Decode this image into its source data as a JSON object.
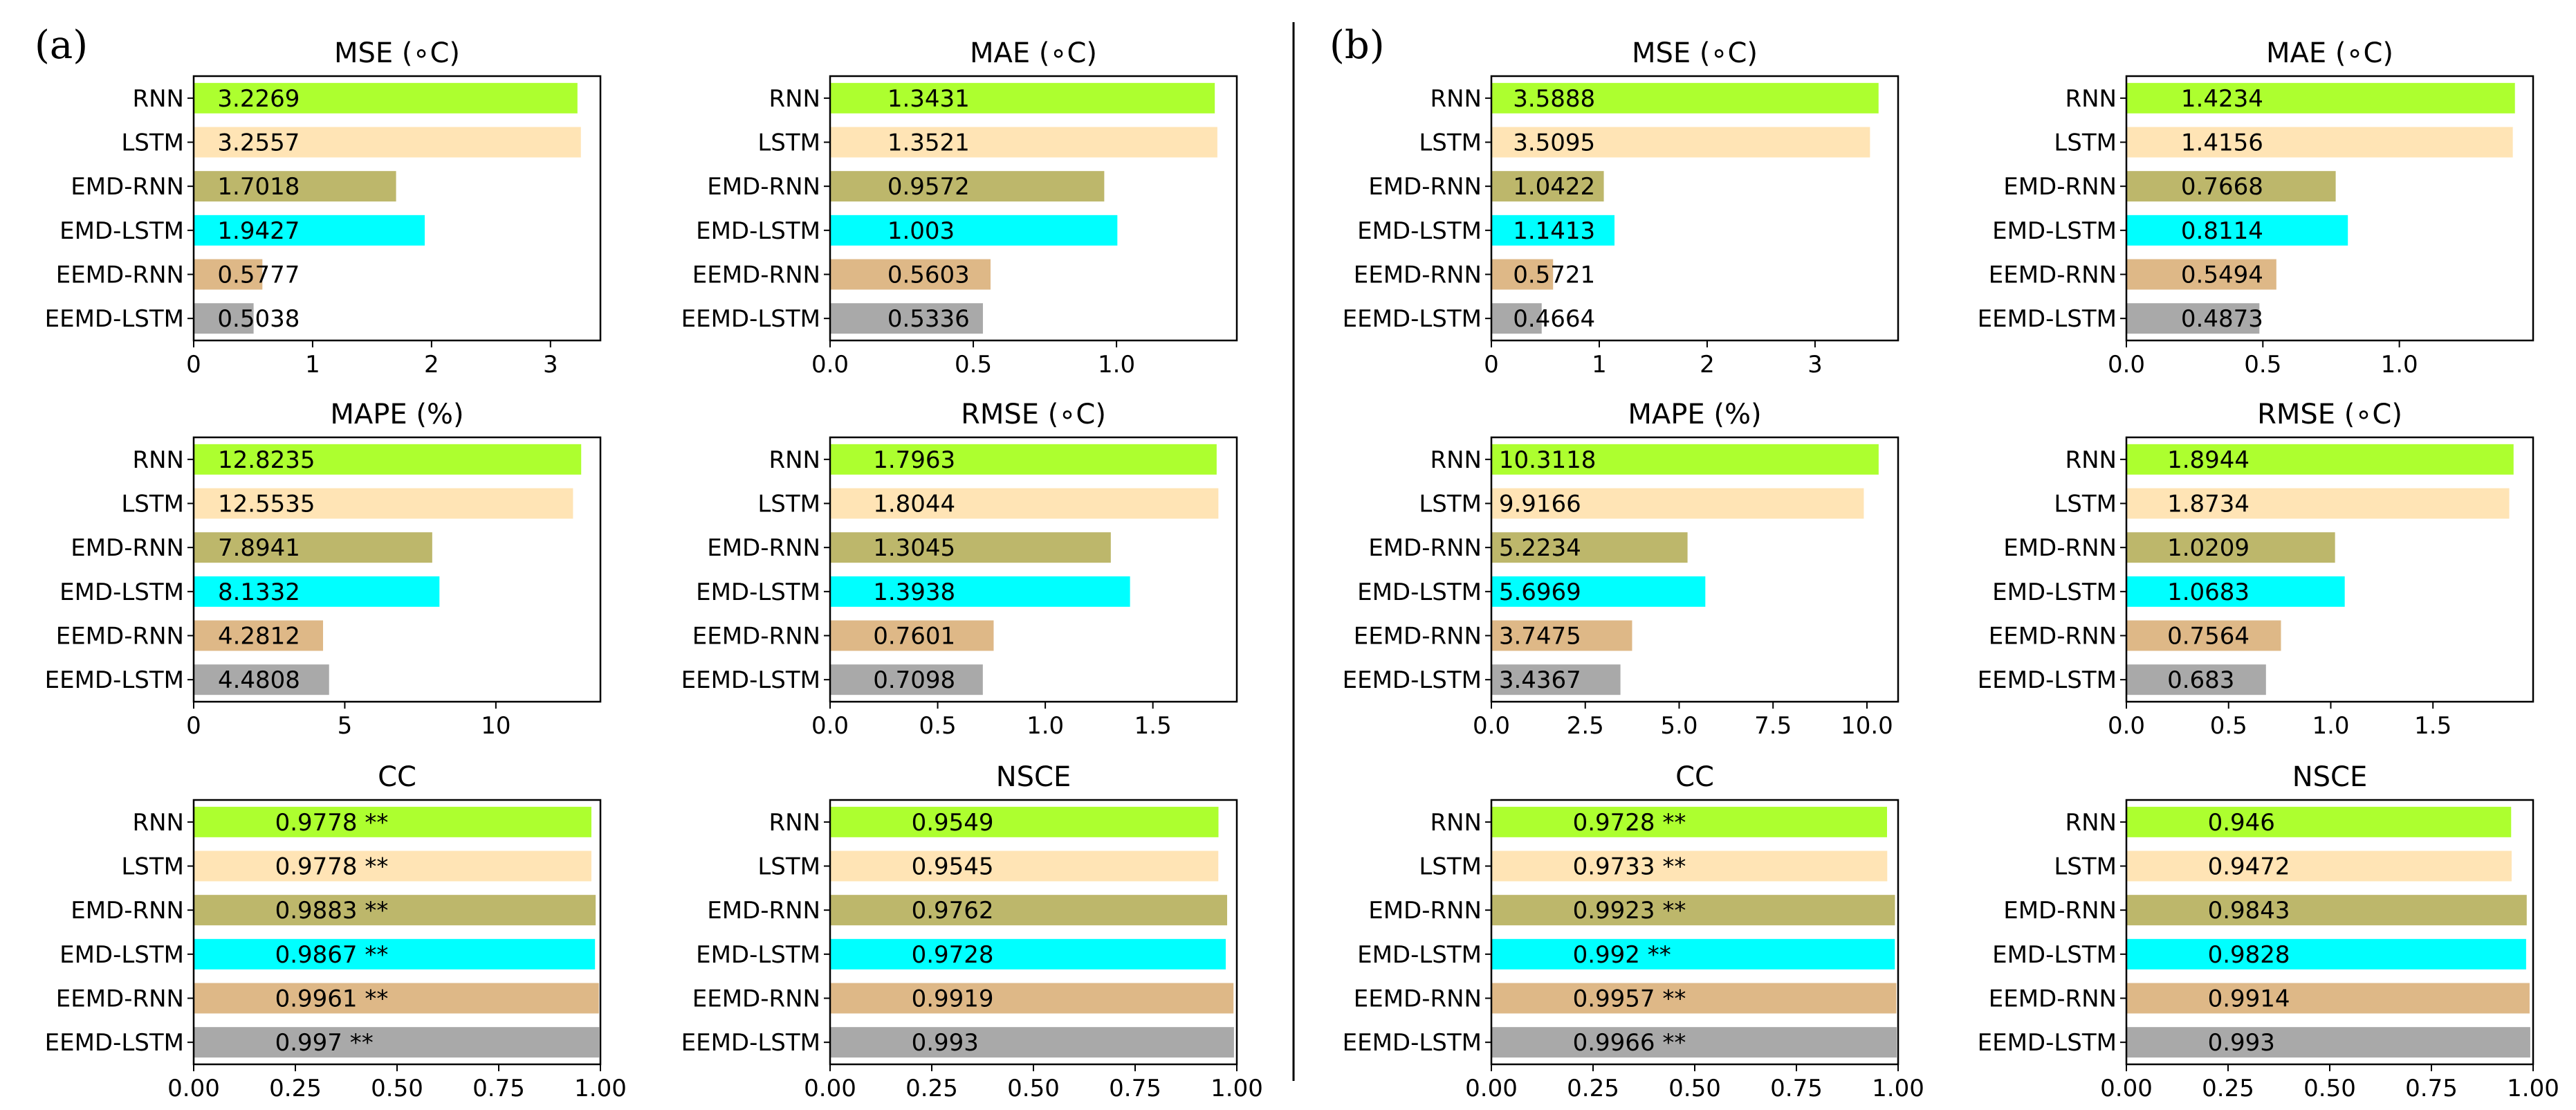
{
  "figure": {
    "panels": [
      {
        "label": "(a)"
      },
      {
        "label": "(b)"
      }
    ]
  },
  "colors": [
    "#adff2f",
    "#ffe4b5",
    "#bdb76b",
    "#00ffff",
    "#deb887",
    "#a9a9a9"
  ],
  "chart_data": [
    {
      "panel": "(a)",
      "type": "bar",
      "orientation": "horizontal",
      "title": "MSE (∘C)",
      "categories": [
        "RNN",
        "LSTM",
        "EMD-RNN",
        "EMD-LSTM",
        "EEMD-RNN",
        "EEMD-LSTM"
      ],
      "values": [
        3.2269,
        3.2557,
        1.7018,
        1.9427,
        0.5777,
        0.5038
      ],
      "labels": [
        "3.2269",
        "3.2557",
        "1.7018",
        "1.9427",
        "0.5777",
        "0.5038"
      ],
      "xlim": [
        0,
        3.42
      ],
      "xticks": [
        0,
        1,
        2,
        3
      ],
      "xtick_labels": [
        "0",
        "1",
        "2",
        "3"
      ],
      "label_x": 0.2
    },
    {
      "panel": "(a)",
      "type": "bar",
      "orientation": "horizontal",
      "title": "MAE (∘C)",
      "categories": [
        "RNN",
        "LSTM",
        "EMD-RNN",
        "EMD-LSTM",
        "EEMD-RNN",
        "EEMD-LSTM"
      ],
      "values": [
        1.3431,
        1.3521,
        0.9572,
        1.003,
        0.5603,
        0.5336
      ],
      "labels": [
        "1.3431",
        "1.3521",
        "0.9572",
        "1.003",
        "0.5603",
        "0.5336"
      ],
      "xlim": [
        0,
        1.42
      ],
      "xticks": [
        0,
        0.5,
        1.0
      ],
      "xtick_labels": [
        "0.0",
        "0.5",
        "1.0"
      ],
      "label_x": 0.2
    },
    {
      "panel": "(a)",
      "type": "bar",
      "orientation": "horizontal",
      "title": "MAPE (%)",
      "categories": [
        "RNN",
        "LSTM",
        "EMD-RNN",
        "EMD-LSTM",
        "EEMD-RNN",
        "EEMD-LSTM"
      ],
      "values": [
        12.8235,
        12.5535,
        7.8941,
        8.1332,
        4.2812,
        4.4808
      ],
      "labels": [
        "12.8235",
        "12.5535",
        "7.8941",
        "8.1332",
        "4.2812",
        "4.4808"
      ],
      "xlim": [
        0,
        13.46
      ],
      "xticks": [
        0,
        5,
        10
      ],
      "xtick_labels": [
        "0",
        "5",
        "10"
      ],
      "label_x": 0.8
    },
    {
      "panel": "(a)",
      "type": "bar",
      "orientation": "horizontal",
      "title": "RMSE (∘C)",
      "categories": [
        "RNN",
        "LSTM",
        "EMD-RNN",
        "EMD-LSTM",
        "EEMD-RNN",
        "EEMD-LSTM"
      ],
      "values": [
        1.7963,
        1.8044,
        1.3045,
        1.3938,
        0.7601,
        0.7098
      ],
      "labels": [
        "1.7963",
        "1.8044",
        "1.3045",
        "1.3938",
        "0.7601",
        "0.7098"
      ],
      "xlim": [
        0,
        1.89
      ],
      "xticks": [
        0,
        0.5,
        1.0,
        1.5
      ],
      "xtick_labels": [
        "0.0",
        "0.5",
        "1.0",
        "1.5"
      ],
      "label_x": 0.2
    },
    {
      "panel": "(a)",
      "type": "bar",
      "orientation": "horizontal",
      "title": "CC",
      "categories": [
        "RNN",
        "LSTM",
        "EMD-RNN",
        "EMD-LSTM",
        "EEMD-RNN",
        "EEMD-LSTM"
      ],
      "values": [
        0.9778,
        0.9778,
        0.9883,
        0.9867,
        0.9961,
        0.997
      ],
      "labels": [
        "0.9778 **",
        "0.9778 **",
        "0.9883 **",
        "0.9867 **",
        "0.9961 **",
        "0.997 **"
      ],
      "xlim": [
        0,
        1.0
      ],
      "xticks": [
        0,
        0.25,
        0.5,
        0.75,
        1.0
      ],
      "xtick_labels": [
        "0.00",
        "0.25",
        "0.50",
        "0.75",
        "1.00"
      ],
      "label_x": 0.2
    },
    {
      "panel": "(a)",
      "type": "bar",
      "orientation": "horizontal",
      "title": "NSCE",
      "categories": [
        "RNN",
        "LSTM",
        "EMD-RNN",
        "EMD-LSTM",
        "EEMD-RNN",
        "EEMD-LSTM"
      ],
      "values": [
        0.9549,
        0.9545,
        0.9762,
        0.9728,
        0.9919,
        0.993
      ],
      "labels": [
        "0.9549",
        "0.9545",
        "0.9762",
        "0.9728",
        "0.9919",
        "0.993"
      ],
      "xlim": [
        0,
        1.0
      ],
      "xticks": [
        0,
        0.25,
        0.5,
        0.75,
        1.0
      ],
      "xtick_labels": [
        "0.00",
        "0.25",
        "0.50",
        "0.75",
        "1.00"
      ],
      "label_x": 0.2
    },
    {
      "panel": "(b)",
      "type": "bar",
      "orientation": "horizontal",
      "title": "MSE (∘C)",
      "categories": [
        "RNN",
        "LSTM",
        "EMD-RNN",
        "EMD-LSTM",
        "EEMD-RNN",
        "EEMD-LSTM"
      ],
      "values": [
        3.5888,
        3.5095,
        1.0422,
        1.1413,
        0.5721,
        0.4664
      ],
      "labels": [
        "3.5888",
        "3.5095",
        "1.0422",
        "1.1413",
        "0.5721",
        "0.4664"
      ],
      "xlim": [
        0,
        3.77
      ],
      "xticks": [
        0,
        1,
        2,
        3
      ],
      "xtick_labels": [
        "0",
        "1",
        "2",
        "3"
      ],
      "label_x": 0.2
    },
    {
      "panel": "(b)",
      "type": "bar",
      "orientation": "horizontal",
      "title": "MAE (∘C)",
      "categories": [
        "RNN",
        "LSTM",
        "EMD-RNN",
        "EMD-LSTM",
        "EEMD-RNN",
        "EEMD-LSTM"
      ],
      "values": [
        1.4234,
        1.4156,
        0.7668,
        0.8114,
        0.5494,
        0.4873
      ],
      "labels": [
        "1.4234",
        "1.4156",
        "0.7668",
        "0.8114",
        "0.5494",
        "0.4873"
      ],
      "xlim": [
        0,
        1.49
      ],
      "xticks": [
        0,
        0.5,
        1.0
      ],
      "xtick_labels": [
        "0.0",
        "0.5",
        "1.0"
      ],
      "label_x": 0.2
    },
    {
      "panel": "(b)",
      "type": "bar",
      "orientation": "horizontal",
      "title": "MAPE (%)",
      "categories": [
        "RNN",
        "LSTM",
        "EMD-RNN",
        "EMD-LSTM",
        "EEMD-RNN",
        "EEMD-LSTM"
      ],
      "values": [
        10.3118,
        9.9166,
        5.2234,
        5.6969,
        3.7475,
        3.4367
      ],
      "labels": [
        "10.3118",
        "9.9166",
        "5.2234",
        "5.6969",
        "3.7475",
        "3.4367"
      ],
      "xlim": [
        0,
        10.83
      ],
      "xticks": [
        0,
        2.5,
        5.0,
        7.5,
        10.0
      ],
      "xtick_labels": [
        "0.0",
        "2.5",
        "5.0",
        "7.5",
        "10.0"
      ],
      "label_x": 0.2
    },
    {
      "panel": "(b)",
      "type": "bar",
      "orientation": "horizontal",
      "title": "RMSE (∘C)",
      "categories": [
        "RNN",
        "LSTM",
        "EMD-RNN",
        "EMD-LSTM",
        "EEMD-RNN",
        "EEMD-LSTM"
      ],
      "values": [
        1.8944,
        1.8734,
        1.0209,
        1.0683,
        0.7564,
        0.683
      ],
      "labels": [
        "1.8944",
        "1.8734",
        "1.0209",
        "1.0683",
        "0.7564",
        "0.683"
      ],
      "xlim": [
        0,
        1.99
      ],
      "xticks": [
        0,
        0.5,
        1.0,
        1.5
      ],
      "xtick_labels": [
        "0.0",
        "0.5",
        "1.0",
        "1.5"
      ],
      "label_x": 0.2
    },
    {
      "panel": "(b)",
      "type": "bar",
      "orientation": "horizontal",
      "title": "CC",
      "categories": [
        "RNN",
        "LSTM",
        "EMD-RNN",
        "EMD-LSTM",
        "EEMD-RNN",
        "EEMD-LSTM"
      ],
      "values": [
        0.9728,
        0.9733,
        0.9923,
        0.992,
        0.9957,
        0.9966
      ],
      "labels": [
        "0.9728 **",
        "0.9733 **",
        "0.9923 **",
        "0.992 **",
        "0.9957 **",
        "0.9966 **"
      ],
      "xlim": [
        0,
        1.0
      ],
      "xticks": [
        0,
        0.25,
        0.5,
        0.75,
        1.0
      ],
      "xtick_labels": [
        "0.00",
        "0.25",
        "0.50",
        "0.75",
        "1.00"
      ],
      "label_x": 0.2
    },
    {
      "panel": "(b)",
      "type": "bar",
      "orientation": "horizontal",
      "title": "NSCE",
      "categories": [
        "RNN",
        "LSTM",
        "EMD-RNN",
        "EMD-LSTM",
        "EEMD-RNN",
        "EEMD-LSTM"
      ],
      "values": [
        0.946,
        0.9472,
        0.9843,
        0.9828,
        0.9914,
        0.993
      ],
      "labels": [
        "0.946",
        "0.9472",
        "0.9843",
        "0.9828",
        "0.9914",
        "0.993"
      ],
      "xlim": [
        0,
        1.0
      ],
      "xticks": [
        0,
        0.25,
        0.5,
        0.75,
        1.0
      ],
      "xtick_labels": [
        "0.00",
        "0.25",
        "0.50",
        "0.75",
        "1.00"
      ],
      "label_x": 0.2
    }
  ]
}
